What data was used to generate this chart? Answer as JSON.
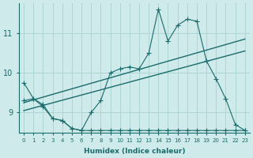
{
  "xlabel": "Humidex (Indice chaleur)",
  "bg_color": "#ceeaea",
  "grid_color": "#afd4d4",
  "line_color": "#1a6b6b",
  "xlim": [
    -0.5,
    23.5
  ],
  "ylim": [
    8.5,
    11.75
  ],
  "yticks": [
    9,
    10,
    11
  ],
  "xticks": [
    0,
    1,
    2,
    3,
    4,
    5,
    6,
    7,
    8,
    9,
    10,
    11,
    12,
    13,
    14,
    15,
    16,
    17,
    18,
    19,
    20,
    21,
    22,
    23
  ],
  "line1_x": [
    0,
    1,
    2,
    3,
    4,
    5,
    6,
    7,
    8,
    9,
    10,
    11,
    12,
    13,
    14,
    15,
    16,
    17,
    18,
    19,
    20,
    21,
    22,
    23
  ],
  "line1_y": [
    9.75,
    9.35,
    9.2,
    8.85,
    8.8,
    8.6,
    8.55,
    9.0,
    9.3,
    10.0,
    10.1,
    10.15,
    10.1,
    10.5,
    11.6,
    10.8,
    11.2,
    11.35,
    11.3,
    10.3,
    9.85,
    9.35,
    8.7,
    8.55
  ],
  "line2_x": [
    0,
    1,
    2,
    3,
    4,
    5,
    6,
    7,
    8,
    9,
    10,
    11,
    12,
    13,
    14,
    15,
    16,
    17,
    18,
    19,
    20,
    21,
    22,
    23
  ],
  "line2_y": [
    9.3,
    9.35,
    9.15,
    8.85,
    8.8,
    8.6,
    8.55,
    8.55,
    8.55,
    8.55,
    8.55,
    8.55,
    8.55,
    8.55,
    8.55,
    8.55,
    8.55,
    8.55,
    8.55,
    8.55,
    8.55,
    8.55,
    8.55,
    8.55
  ],
  "trend1_x": [
    0,
    23
  ],
  "trend1_y": [
    9.25,
    10.85
  ],
  "trend2_x": [
    0,
    23
  ],
  "trend2_y": [
    9.05,
    10.55
  ]
}
